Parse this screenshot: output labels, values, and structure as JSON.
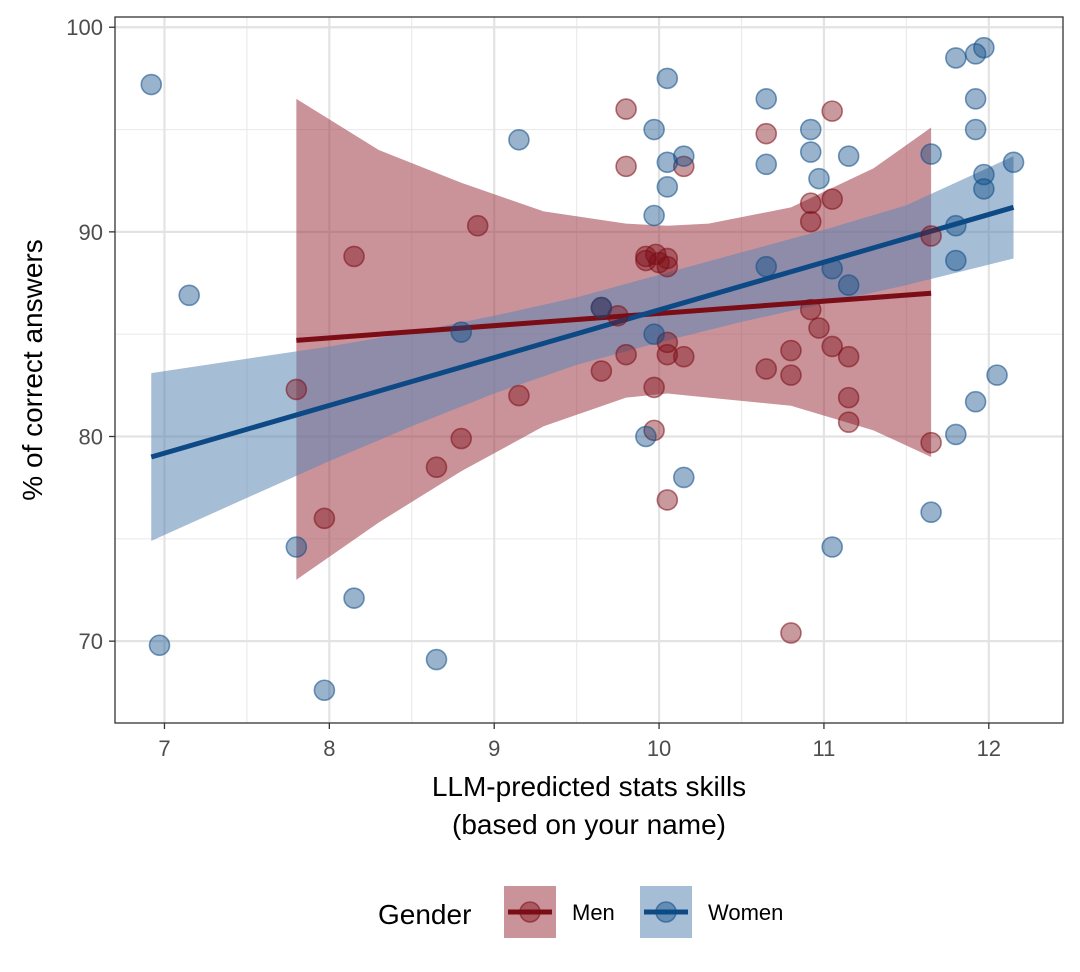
{
  "chart_data": {
    "type": "scatter",
    "xlabel_line1": "LLM-predicted stats skills",
    "xlabel_line2": "(based on your name)",
    "ylabel": "% of correct answers",
    "xlim": [
      6.7,
      12.45
    ],
    "ylim": [
      66,
      100.5
    ],
    "x_ticks": [
      7,
      8,
      9,
      10,
      11,
      12
    ],
    "y_ticks": [
      70,
      80,
      90,
      100
    ],
    "grid": true,
    "legend": {
      "title": "Gender",
      "placement": "bottom",
      "entries": [
        "Men",
        "Women"
      ]
    },
    "series": [
      {
        "name": "Men",
        "color": "#7b0d16",
        "band_color": "#9e3a47",
        "x": [
          7.8,
          7.97,
          8.15,
          8.65,
          8.8,
          8.9,
          9.15,
          9.65,
          9.65,
          9.75,
          9.8,
          9.8,
          9.8,
          9.92,
          9.92,
          9.97,
          9.97,
          9.98,
          10.0,
          10.05,
          10.05,
          10.05,
          10.05,
          10.05,
          10.15,
          10.15,
          10.65,
          10.65,
          10.8,
          10.8,
          10.8,
          10.92,
          10.92,
          10.92,
          10.97,
          11.05,
          11.05,
          11.05,
          11.15,
          11.15,
          11.15,
          11.65,
          11.65
        ],
        "y": [
          82.3,
          76.0,
          88.8,
          78.5,
          79.9,
          90.3,
          82.0,
          83.2,
          86.3,
          85.9,
          96.0,
          93.2,
          84.0,
          88.8,
          88.6,
          82.4,
          80.3,
          88.9,
          88.5,
          76.9,
          84.6,
          88.3,
          88.7,
          84.0,
          93.2,
          83.9,
          94.8,
          83.3,
          84.2,
          83.0,
          70.4,
          91.4,
          90.5,
          86.2,
          85.3,
          95.9,
          91.6,
          84.4,
          83.9,
          81.9,
          80.7,
          89.8,
          79.7
        ],
        "fit": {
          "x": [
            7.8,
            11.65
          ],
          "y": [
            84.7,
            87.0
          ]
        },
        "ci_x": [
          7.8,
          8.3,
          8.8,
          9.3,
          9.8,
          10.05,
          10.3,
          10.8,
          11.3,
          11.65
        ],
        "ci_upper": [
          96.5,
          94.0,
          92.4,
          91.0,
          90.4,
          90.3,
          90.4,
          91.2,
          93.1,
          95.1
        ],
        "ci_lower": [
          73.0,
          75.8,
          78.3,
          80.5,
          81.9,
          82.1,
          81.9,
          81.5,
          80.3,
          79.0
        ]
      },
      {
        "name": "Women",
        "color": "#0d4a85",
        "band_color": "#5d86b5",
        "x": [
          6.92,
          6.97,
          7.15,
          7.8,
          7.97,
          8.15,
          8.65,
          8.8,
          9.15,
          9.65,
          9.92,
          9.97,
          9.97,
          9.97,
          10.05,
          10.05,
          10.05,
          10.15,
          10.15,
          10.65,
          10.65,
          10.65,
          10.92,
          10.92,
          10.97,
          11.05,
          11.05,
          11.15,
          11.15,
          11.65,
          11.65,
          11.8,
          11.8,
          11.8,
          11.8,
          11.92,
          11.92,
          11.92,
          11.92,
          11.97,
          11.97,
          11.97,
          12.05,
          12.15
        ],
        "y": [
          97.2,
          69.8,
          86.9,
          74.6,
          67.6,
          72.1,
          69.1,
          85.1,
          94.5,
          86.3,
          80.0,
          95.0,
          90.8,
          85.0,
          97.5,
          93.4,
          92.2,
          78.0,
          93.7,
          96.5,
          93.3,
          88.3,
          95.0,
          93.9,
          92.6,
          74.6,
          88.2,
          93.7,
          87.4,
          93.8,
          76.3,
          98.5,
          90.3,
          88.6,
          80.1,
          98.7,
          96.5,
          95.0,
          81.7,
          99.0,
          92.8,
          92.1,
          83.0,
          93.4
        ],
        "fit": {
          "x": [
            6.92,
            12.15
          ],
          "y": [
            79.0,
            91.2
          ]
        },
        "ci_x": [
          6.92,
          7.5,
          8.0,
          8.5,
          9.0,
          9.5,
          10.0,
          10.5,
          11.0,
          11.5,
          12.15
        ],
        "ci_upper": [
          83.1,
          83.8,
          84.4,
          85.1,
          85.9,
          86.8,
          87.9,
          89.0,
          90.1,
          91.3,
          93.7
        ],
        "ci_lower": [
          74.9,
          77.0,
          78.8,
          80.5,
          82.1,
          83.5,
          84.6,
          85.6,
          86.5,
          87.4,
          88.7
        ]
      }
    ]
  }
}
